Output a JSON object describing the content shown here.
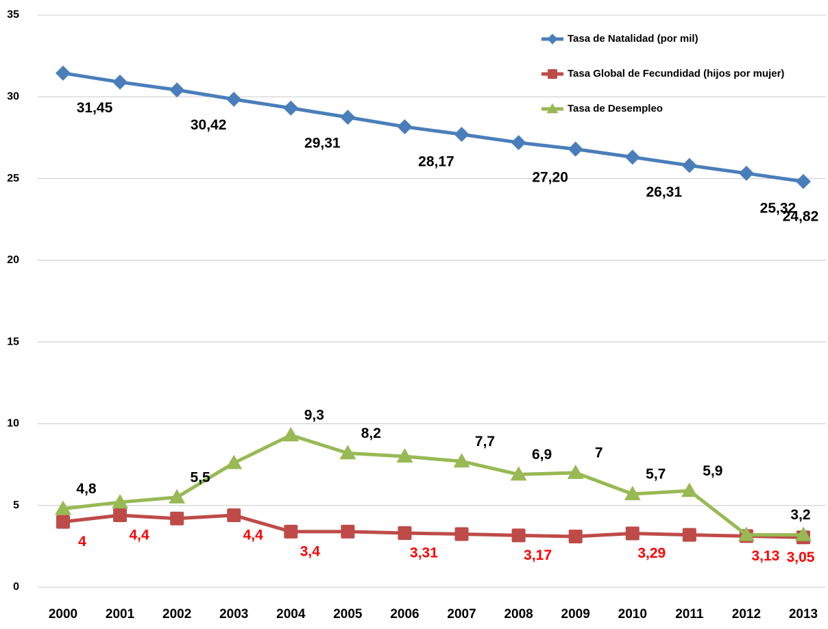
{
  "chart_data": {
    "type": "line",
    "categories": [
      "2000",
      "2001",
      "2002",
      "2003",
      "2004",
      "2005",
      "2006",
      "2007",
      "2008",
      "2009",
      "2010",
      "2011",
      "2012",
      "2013"
    ],
    "series": [
      {
        "name": "Tasa de Natalidad (por mil)",
        "color": "#4a7ebb",
        "marker": "diamond",
        "label_color": "#000000",
        "values": [
          31.45,
          30.9,
          30.42,
          29.85,
          29.31,
          28.75,
          28.17,
          27.7,
          27.2,
          26.8,
          26.31,
          25.8,
          25.32,
          24.82
        ],
        "value_labels": [
          "31,45",
          null,
          "30,42",
          null,
          "29,31",
          null,
          "28,17",
          null,
          "27,20",
          null,
          "26,31",
          null,
          "25,32",
          "24,82"
        ]
      },
      {
        "name": "Tasa Global de Fecundidad (hijos por mujer)",
        "color": "#be4b48",
        "marker": "square",
        "label_color": "#ff0000",
        "values": [
          4,
          4.4,
          4.2,
          4.4,
          3.4,
          3.4,
          3.31,
          3.25,
          3.17,
          3.1,
          3.29,
          3.2,
          3.13,
          3.05
        ],
        "value_labels": [
          "4",
          "4,4",
          null,
          "4,4",
          "3,4",
          null,
          "3,31",
          null,
          "3,17",
          null,
          "3,29",
          null,
          "3,13",
          "3,05"
        ]
      },
      {
        "name": "Tasa de Desempleo",
        "color": "#98b954",
        "marker": "triangle",
        "label_color": "#000000",
        "values": [
          4.8,
          5.2,
          5.5,
          7.6,
          9.3,
          8.2,
          8.0,
          7.7,
          6.9,
          7,
          5.7,
          5.9,
          3.2,
          3.2
        ],
        "value_labels": [
          "4,8",
          null,
          "5,5",
          null,
          "9,3",
          "8,2",
          null,
          "7,7",
          "6,9",
          "7",
          "5,7",
          "5,9",
          null,
          "3,2"
        ]
      }
    ],
    "ylim": [
      0,
      35
    ],
    "yticks": [
      0,
      5,
      10,
      15,
      20,
      25,
      30,
      35
    ],
    "grid": true,
    "legend": "top-right"
  }
}
